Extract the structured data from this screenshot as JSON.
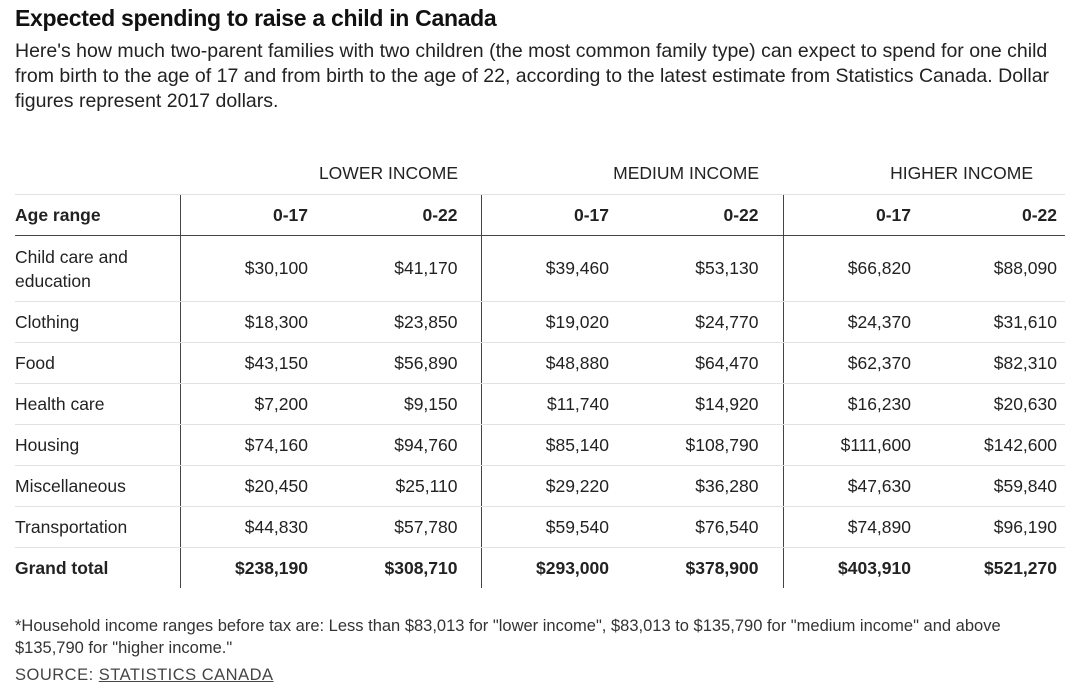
{
  "header": {
    "title": "Expected spending to raise a child in Canada",
    "subtitle": "Here's how much two-parent families with two children (the most common family type) can expect to spend for one child from birth to the age of 17 and from birth to the age of 22, according to the latest estimate from Statistics Canada. Dollar figures represent 2017 dollars."
  },
  "table": {
    "groups": [
      "LOWER INCOME",
      "MEDIUM INCOME",
      "HIGHER INCOME"
    ],
    "columns": [
      "Age range",
      "0-17",
      "0-22",
      "0-17",
      "0-22",
      "0-17",
      "0-22"
    ],
    "rows": [
      [
        "Child care and education",
        "$30,100",
        "$41,170",
        "$39,460",
        "$53,130",
        "$66,820",
        "$88,090"
      ],
      [
        "Clothing",
        "$18,300",
        "$23,850",
        "$19,020",
        "$24,770",
        "$24,370",
        "$31,610"
      ],
      [
        "Food",
        "$43,150",
        "$56,890",
        "$48,880",
        "$64,470",
        "$62,370",
        "$82,310"
      ],
      [
        "Health care",
        "$7,200",
        "$9,150",
        "$11,740",
        "$14,920",
        "$16,230",
        "$20,630"
      ],
      [
        "Housing",
        "$74,160",
        "$94,760",
        "$85,140",
        "$108,790",
        "$111,600",
        "$142,600"
      ],
      [
        "Miscellaneous",
        "$20,450",
        "$25,110",
        "$29,220",
        "$36,280",
        "$47,630",
        "$59,840"
      ],
      [
        "Transportation",
        "$44,830",
        "$57,780",
        "$59,540",
        "$76,540",
        "$74,890",
        "$96,190"
      ]
    ],
    "total": [
      "Grand total",
      "$238,190",
      "$308,710",
      "$293,000",
      "$378,900",
      "$403,910",
      "$521,270"
    ]
  },
  "footer": {
    "note": "*Household income ranges before tax are: Less than $83,013 for \"lower income\", $83,013 to $135,790 for \"medium income\" and above $135,790 for \"higher income.\"",
    "source_label": "SOURCE:",
    "source_link": "STATISTICS CANADA"
  }
}
